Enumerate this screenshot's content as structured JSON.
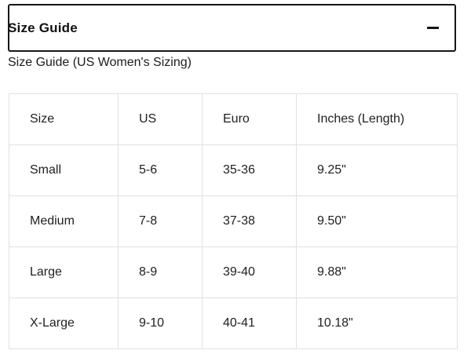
{
  "accordion": {
    "title": "Size Guide",
    "collapse_icon": "minus-icon",
    "expanded": true
  },
  "subtitle": "Size Guide (US Women's Sizing)",
  "table": {
    "headers": [
      "Size",
      "US",
      "Euro",
      "Inches (Length)"
    ],
    "rows": [
      [
        "Small",
        "5-6",
        "35-36",
        "9.25\""
      ],
      [
        "Medium",
        "7-8",
        "37-38",
        "9.50\""
      ],
      [
        "Large",
        "8-9",
        "39-40",
        "9.88\""
      ],
      [
        "X-Large",
        "9-10",
        "40-41",
        "10.18\""
      ]
    ]
  },
  "colors": {
    "header_border": "#161616",
    "table_border": "#e0e0e0",
    "text": "#212121",
    "background": "#ffffff"
  }
}
